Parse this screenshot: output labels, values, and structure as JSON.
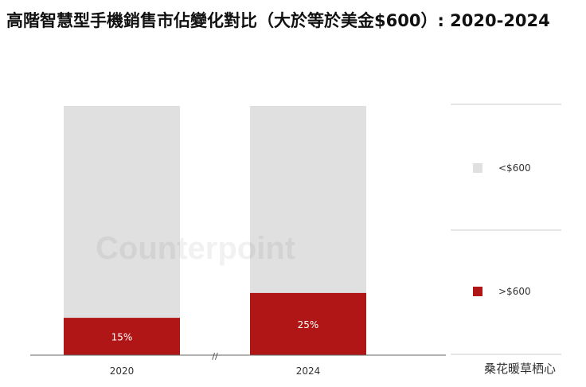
{
  "title": "高階智慧型手機銷售市佔變化對比（大於等於美金$600）: 2020-2024",
  "watermark": "Counterpoint",
  "source_credit": "桑花暖草栖心",
  "axis_break_mark": "//",
  "colors": {
    "low": "#e0e0e0",
    "high": "#b01616",
    "axis": "#666666",
    "legend_rule": "#cccccc"
  },
  "chart_data": {
    "type": "bar",
    "stacked": true,
    "categories": [
      "2020",
      "2024"
    ],
    "series": [
      {
        "name": ">$600",
        "values": [
          15,
          25
        ],
        "labels": [
          "15%",
          "25%"
        ],
        "color": "#b01616"
      },
      {
        "name": "<$600",
        "values": [
          85,
          75
        ],
        "color": "#e0e0e0"
      }
    ],
    "ylim": [
      0,
      100
    ],
    "legend_position": "right",
    "grid": false
  }
}
